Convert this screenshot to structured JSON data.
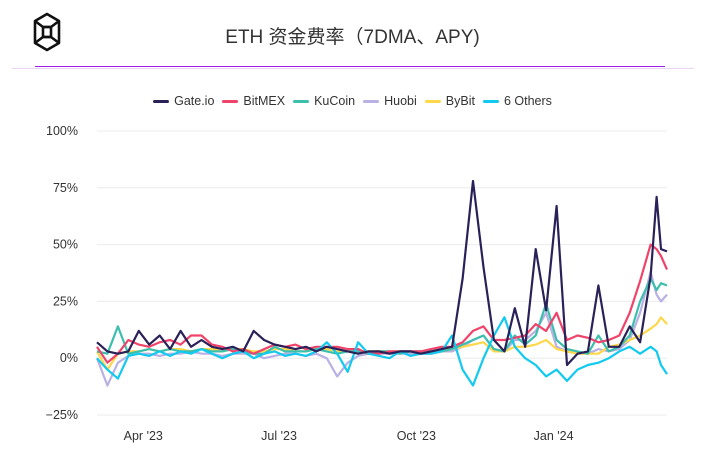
{
  "header": {
    "title": "ETH 资金费率（7DMA、APY)",
    "logo": "cube-logo"
  },
  "chart_data": {
    "type": "line",
    "title": "ETH 资金费率（7DMA、APY)",
    "xlabel": "",
    "ylabel": "",
    "ylim": [
      -25,
      100
    ],
    "xlim": [
      "2023-03-01",
      "2024-03-17"
    ],
    "grid": true,
    "legend": "top-center",
    "y_ticks": [
      {
        "value": 100,
        "label": "100%"
      },
      {
        "value": 75,
        "label": "75%"
      },
      {
        "value": 50,
        "label": "50%"
      },
      {
        "value": 25,
        "label": "25%"
      },
      {
        "value": 0,
        "label": "0%"
      },
      {
        "value": -25,
        "label": "−25%"
      }
    ],
    "x_ticks": [
      {
        "date": "2023-04-01",
        "label": "Apr '23"
      },
      {
        "date": "2023-07-01",
        "label": "Jul '23"
      },
      {
        "date": "2023-10-01",
        "label": "Oct '23"
      },
      {
        "date": "2024-01-01",
        "label": "Jan '24"
      }
    ],
    "x": [
      "2023-03-01",
      "2023-03-08",
      "2023-03-15",
      "2023-03-22",
      "2023-03-29",
      "2023-04-05",
      "2023-04-12",
      "2023-04-19",
      "2023-04-26",
      "2023-05-03",
      "2023-05-10",
      "2023-05-17",
      "2023-05-24",
      "2023-05-31",
      "2023-06-07",
      "2023-06-14",
      "2023-06-21",
      "2023-06-28",
      "2023-07-05",
      "2023-07-12",
      "2023-07-19",
      "2023-07-26",
      "2023-08-02",
      "2023-08-09",
      "2023-08-16",
      "2023-08-23",
      "2023-08-30",
      "2023-09-06",
      "2023-09-13",
      "2023-09-20",
      "2023-09-27",
      "2023-10-04",
      "2023-10-11",
      "2023-10-18",
      "2023-10-25",
      "2023-11-01",
      "2023-11-08",
      "2023-11-15",
      "2023-11-22",
      "2023-11-29",
      "2023-12-06",
      "2023-12-13",
      "2023-12-20",
      "2023-12-27",
      "2024-01-03",
      "2024-01-10",
      "2024-01-17",
      "2024-01-24",
      "2024-01-31",
      "2024-02-07",
      "2024-02-14",
      "2024-02-21",
      "2024-02-28",
      "2024-03-06",
      "2024-03-10",
      "2024-03-13",
      "2024-03-17"
    ],
    "series": [
      {
        "name": "Gate.io",
        "color": "#2a2158",
        "values": [
          7,
          3,
          2,
          3,
          12,
          6,
          10,
          4,
          12,
          5,
          8,
          5,
          4,
          5,
          3,
          12,
          8,
          6,
          5,
          4,
          5,
          3,
          5,
          4,
          3,
          2,
          3,
          3,
          2,
          3,
          3,
          2,
          3,
          4,
          5,
          35,
          78,
          40,
          8,
          3,
          22,
          5,
          48,
          21,
          67,
          -3,
          2,
          3,
          32,
          5,
          5,
          14,
          7,
          36,
          71,
          48,
          47
        ]
      },
      {
        "name": "BitMEX",
        "color": "#f0436a",
        "values": [
          5,
          -2,
          2,
          8,
          6,
          5,
          7,
          8,
          6,
          10,
          10,
          6,
          5,
          3,
          4,
          2,
          4,
          6,
          5,
          6,
          4,
          5,
          5,
          5,
          4,
          4,
          2,
          2,
          3,
          3,
          3,
          3,
          4,
          5,
          5,
          7,
          12,
          14,
          8,
          8,
          9,
          10,
          15,
          12,
          20,
          8,
          10,
          9,
          7,
          8,
          10,
          20,
          34,
          50,
          48,
          45,
          39
        ]
      },
      {
        "name": "KuCoin",
        "color": "#3dbfae",
        "values": [
          3,
          2,
          14,
          2,
          3,
          4,
          3,
          4,
          3,
          3,
          4,
          3,
          3,
          4,
          3,
          2,
          2,
          5,
          3,
          3,
          3,
          4,
          3,
          2,
          3,
          3,
          2,
          3,
          3,
          2,
          3,
          3,
          3,
          3,
          4,
          6,
          8,
          10,
          4,
          3,
          10,
          6,
          10,
          24,
          8,
          4,
          3,
          2,
          10,
          3,
          5,
          10,
          25,
          35,
          30,
          33,
          32
        ]
      },
      {
        "name": "Huobi",
        "color": "#b9b0e3",
        "values": [
          0,
          -12,
          -2,
          1,
          2,
          2,
          1,
          2,
          2,
          3,
          2,
          2,
          1,
          2,
          2,
          2,
          0,
          1,
          2,
          2,
          1,
          2,
          0,
          -8,
          -2,
          1,
          2,
          2,
          2,
          2,
          2,
          2,
          2,
          3,
          3,
          5,
          8,
          10,
          4,
          3,
          8,
          8,
          12,
          20,
          5,
          3,
          2,
          2,
          4,
          3,
          4,
          8,
          20,
          38,
          28,
          25,
          28
        ]
      },
      {
        "name": "ByBit",
        "color": "#ffd84a",
        "values": [
          3,
          -5,
          2,
          3,
          3,
          4,
          3,
          4,
          4,
          3,
          4,
          4,
          3,
          4,
          4,
          3,
          3,
          4,
          4,
          3,
          3,
          4,
          4,
          3,
          3,
          3,
          3,
          3,
          3,
          3,
          3,
          3,
          3,
          3,
          4,
          5,
          6,
          7,
          3,
          3,
          5,
          5,
          6,
          8,
          4,
          3,
          2,
          2,
          2,
          5,
          6,
          8,
          10,
          13,
          15,
          18,
          15
        ]
      },
      {
        "name": "6 Others",
        "color": "#12c9ef",
        "values": [
          0,
          -5,
          -9,
          1,
          2,
          1,
          3,
          1,
          3,
          2,
          4,
          2,
          0,
          2,
          3,
          0,
          2,
          3,
          1,
          2,
          1,
          3,
          7,
          2,
          -6,
          7,
          2,
          1,
          0,
          3,
          1,
          2,
          2,
          3,
          10,
          -5,
          -12,
          0,
          10,
          18,
          5,
          0,
          -3,
          -8,
          -5,
          -10,
          -5,
          -3,
          -2,
          0,
          3,
          5,
          2,
          5,
          3,
          -3,
          -7
        ]
      }
    ]
  }
}
